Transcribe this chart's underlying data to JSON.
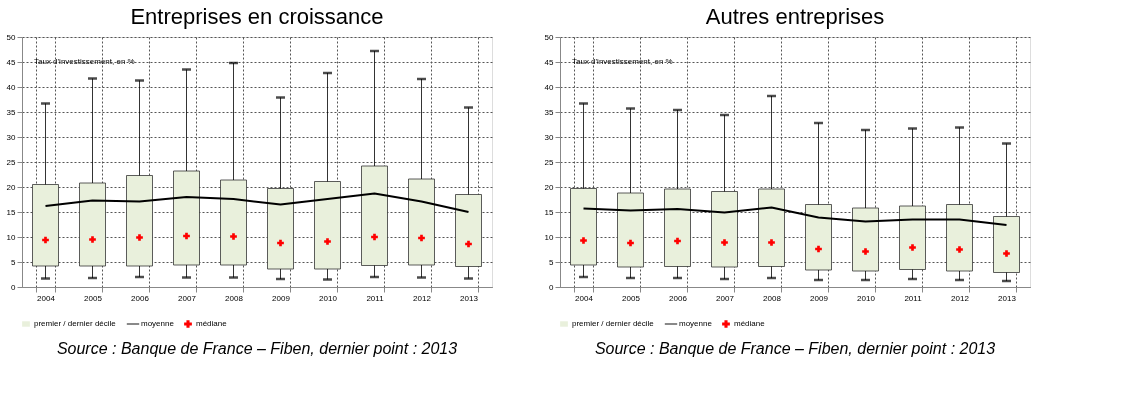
{
  "chart_data": [
    {
      "type": "box",
      "title": "Entreprises en croissance",
      "categories": [
        "2004",
        "2005",
        "2006",
        "2007",
        "2008",
        "2009",
        "2010",
        "2011",
        "2012",
        "2013"
      ],
      "series": [
        {
          "name": "premier / dernier décile",
          "type": "box",
          "color": "#e9f0dc",
          "boxes": [
            {
              "low": 1.7,
              "q1": 4.2,
              "q3": 20.5,
              "high": 36.7
            },
            {
              "low": 1.8,
              "q1": 4.2,
              "q3": 20.8,
              "high": 41.7
            },
            {
              "low": 2.0,
              "q1": 4.2,
              "q3": 22.3,
              "high": 41.3
            },
            {
              "low": 1.9,
              "q1": 4.4,
              "q3": 23.2,
              "high": 43.5
            },
            {
              "low": 1.9,
              "q1": 4.4,
              "q3": 21.4,
              "high": 44.8
            },
            {
              "low": 1.6,
              "q1": 3.6,
              "q3": 19.7,
              "high": 37.9
            },
            {
              "low": 1.5,
              "q1": 3.6,
              "q3": 21.1,
              "high": 42.8
            },
            {
              "low": 2.0,
              "q1": 4.3,
              "q3": 24.2,
              "high": 47.2
            },
            {
              "low": 1.9,
              "q1": 4.4,
              "q3": 21.6,
              "high": 41.6
            },
            {
              "low": 1.7,
              "q1": 4.1,
              "q3": 18.5,
              "high": 35.9
            }
          ]
        },
        {
          "name": "moyenne",
          "type": "line",
          "color": "#000000",
          "values": [
            16.2,
            17.3,
            17.1,
            18.0,
            17.6,
            16.5,
            17.6,
            18.7,
            17.1,
            15.0
          ]
        },
        {
          "name": "médiane",
          "type": "scatter",
          "color": "#ff0000",
          "marker": "cross",
          "values": [
            9.4,
            9.5,
            9.9,
            10.2,
            10.1,
            8.8,
            9.1,
            10.0,
            9.8,
            8.6
          ]
        }
      ],
      "ylim": [
        0,
        50
      ],
      "yticks": [
        0,
        5,
        10,
        15,
        20,
        25,
        30,
        35,
        40,
        45,
        50
      ],
      "grid": true,
      "legend": "bottom",
      "annotations": [
        "Taux d'investissement, en %",
        "Source : Banque de France – Fiben, dernier point : 2013"
      ]
    },
    {
      "type": "box",
      "title": "Autres entreprises",
      "categories": [
        "2004",
        "2005",
        "2006",
        "2007",
        "2008",
        "2009",
        "2010",
        "2011",
        "2012",
        "2013"
      ],
      "series": [
        {
          "name": "premier / dernier décile",
          "type": "box",
          "color": "#e9f0dc",
          "boxes": [
            {
              "low": 2.0,
              "q1": 4.4,
              "q3": 19.7,
              "high": 36.7
            },
            {
              "low": 1.8,
              "q1": 4.0,
              "q3": 18.8,
              "high": 35.7
            },
            {
              "low": 1.8,
              "q1": 4.1,
              "q3": 19.6,
              "high": 35.4
            },
            {
              "low": 1.6,
              "q1": 4.0,
              "q3": 19.1,
              "high": 34.4
            },
            {
              "low": 1.8,
              "q1": 4.1,
              "q3": 19.6,
              "high": 38.2
            },
            {
              "low": 1.4,
              "q1": 3.4,
              "q3": 16.5,
              "high": 32.8
            },
            {
              "low": 1.4,
              "q1": 3.2,
              "q3": 15.8,
              "high": 31.4
            },
            {
              "low": 1.6,
              "q1": 3.5,
              "q3": 16.2,
              "high": 31.7
            },
            {
              "low": 1.4,
              "q1": 3.2,
              "q3": 16.5,
              "high": 31.9
            },
            {
              "low": 1.2,
              "q1": 2.9,
              "q3": 14.1,
              "high": 28.7
            }
          ]
        },
        {
          "name": "moyenne",
          "type": "line",
          "color": "#000000",
          "values": [
            15.7,
            15.3,
            15.6,
            14.9,
            15.9,
            13.9,
            13.1,
            13.5,
            13.5,
            12.4
          ]
        },
        {
          "name": "médiane",
          "type": "scatter",
          "color": "#ff0000",
          "marker": "cross",
          "values": [
            9.3,
            8.8,
            9.2,
            8.9,
            8.9,
            7.6,
            7.1,
            7.9,
            7.5,
            6.7
          ]
        }
      ],
      "ylim": [
        0,
        50
      ],
      "yticks": [
        0,
        5,
        10,
        15,
        20,
        25,
        30,
        35,
        40,
        45,
        50
      ],
      "grid": true,
      "legend": "bottom",
      "annotations": [
        "Taux d'investissement, en %",
        "Source : Banque de France – Fiben, dernier point : 2013"
      ]
    }
  ]
}
